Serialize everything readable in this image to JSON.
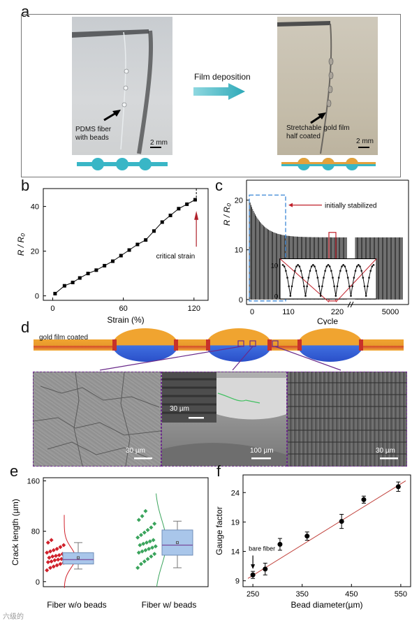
{
  "panels": {
    "a": {
      "label": "a",
      "left_photo_text": [
        "PDMS fiber",
        "with beads"
      ],
      "right_photo_text": [
        "Stretchable gold film",
        "half coated"
      ],
      "scale_left": "2 mm",
      "scale_right": "2 mm",
      "process_label": "Film deposition"
    },
    "b": {
      "label": "b",
      "ylabel": "R / R₀",
      "xlabel": "Strain (%)",
      "annotation": "critical strain"
    },
    "c": {
      "label": "c",
      "ylabel": "R / R₀",
      "xlabel": "Cycle",
      "annotation": "initially stabilized"
    },
    "d": {
      "label": "d",
      "fiber_label": "gold film coated",
      "scale1": "30 µm",
      "scale2_inset": "30 µm",
      "scale2": "100 µm",
      "scale3": "30 µm"
    },
    "e": {
      "label": "e",
      "ylabel": "Crack length (µm)",
      "group1": "Fiber w/o beads",
      "group2": "Fiber w/ beads"
    },
    "f": {
      "label": "f",
      "ylabel": "Gauge factor",
      "xlabel": "Bead diameter(µm)",
      "annotation": "bare fiber"
    }
  },
  "watermark": "六级的",
  "chart_data": [
    {
      "panel": "b",
      "type": "line",
      "x": [
        2,
        10,
        17,
        23,
        30,
        37,
        44,
        51,
        58,
        65,
        72,
        79,
        86,
        93,
        100,
        107,
        114,
        121
      ],
      "values": [
        1,
        4.5,
        6,
        8,
        10,
        11.5,
        13.5,
        15.5,
        18,
        20.5,
        23,
        25,
        29,
        33,
        36,
        39,
        41,
        43
      ],
      "xlabel": "Strain (%)",
      "ylabel": "R / R₀",
      "xticks": [
        "0",
        "60",
        "120"
      ],
      "yticks": [
        "0",
        "20",
        "40"
      ],
      "xlim": [
        -8,
        132
      ],
      "ylim": [
        -2,
        48
      ],
      "critical_strain_x": 122
    },
    {
      "panel": "c",
      "type": "line",
      "xlabel": "Cycle",
      "ylabel": "R / R₀",
      "xticks": [
        "0",
        "110",
        "220",
        "5000"
      ],
      "yticks": [
        "0",
        "10",
        "20"
      ],
      "ylim": [
        -1,
        24
      ],
      "peak_start": 20,
      "peak_stable": 12.5,
      "inset": {
        "yticks": [
          "0",
          "10"
        ],
        "ylim": [
          -1,
          12
        ],
        "peak": 10,
        "cycles": 6
      }
    },
    {
      "panel": "e",
      "type": "scatter",
      "ylabel": "Crack length (µm)",
      "yticks": [
        "0",
        "80",
        "160"
      ],
      "ylim": [
        -8,
        165
      ],
      "categories": [
        "Fiber w/o beads",
        "Fiber w/ beads"
      ],
      "series": [
        {
          "values": [
            18,
            22,
            24,
            26,
            28,
            30,
            31,
            32,
            34,
            35,
            36,
            37,
            38,
            40,
            41,
            42,
            44,
            46,
            48,
            50,
            52,
            55,
            58,
            62,
            66
          ],
          "box": {
            "min": 20,
            "q1": 28,
            "median": 35,
            "q3": 46,
            "max": 62,
            "mean": 38
          }
        },
        {
          "values": [
            22,
            28,
            32,
            36,
            40,
            44,
            46,
            48,
            50,
            52,
            54,
            56,
            58,
            60,
            62,
            64,
            66,
            70,
            74,
            78,
            82,
            86,
            92,
            98,
            104,
            112
          ],
          "box": {
            "min": 22,
            "q1": 42,
            "median": 58,
            "q3": 82,
            "max": 96,
            "mean": 62
          }
        }
      ]
    },
    {
      "panel": "f",
      "type": "scatter",
      "x": [
        250,
        275,
        305,
        360,
        430,
        475,
        545
      ],
      "values": [
        10,
        11,
        15.2,
        16.6,
        19.1,
        22.8,
        25
      ],
      "errors": [
        0.6,
        1.0,
        1.0,
        0.7,
        1.2,
        0.6,
        0.8
      ],
      "fit": {
        "x": [
          240,
          560
        ],
        "y": [
          9.4,
          26.0
        ]
      },
      "xlabel": "Bead diameter(µm)",
      "ylabel": "Gauge factor",
      "xticks": [
        "250",
        "350",
        "450",
        "550"
      ],
      "yticks": [
        "9",
        "14",
        "19",
        "24"
      ],
      "xlim": [
        230,
        570
      ],
      "ylim": [
        8,
        27
      ]
    }
  ]
}
